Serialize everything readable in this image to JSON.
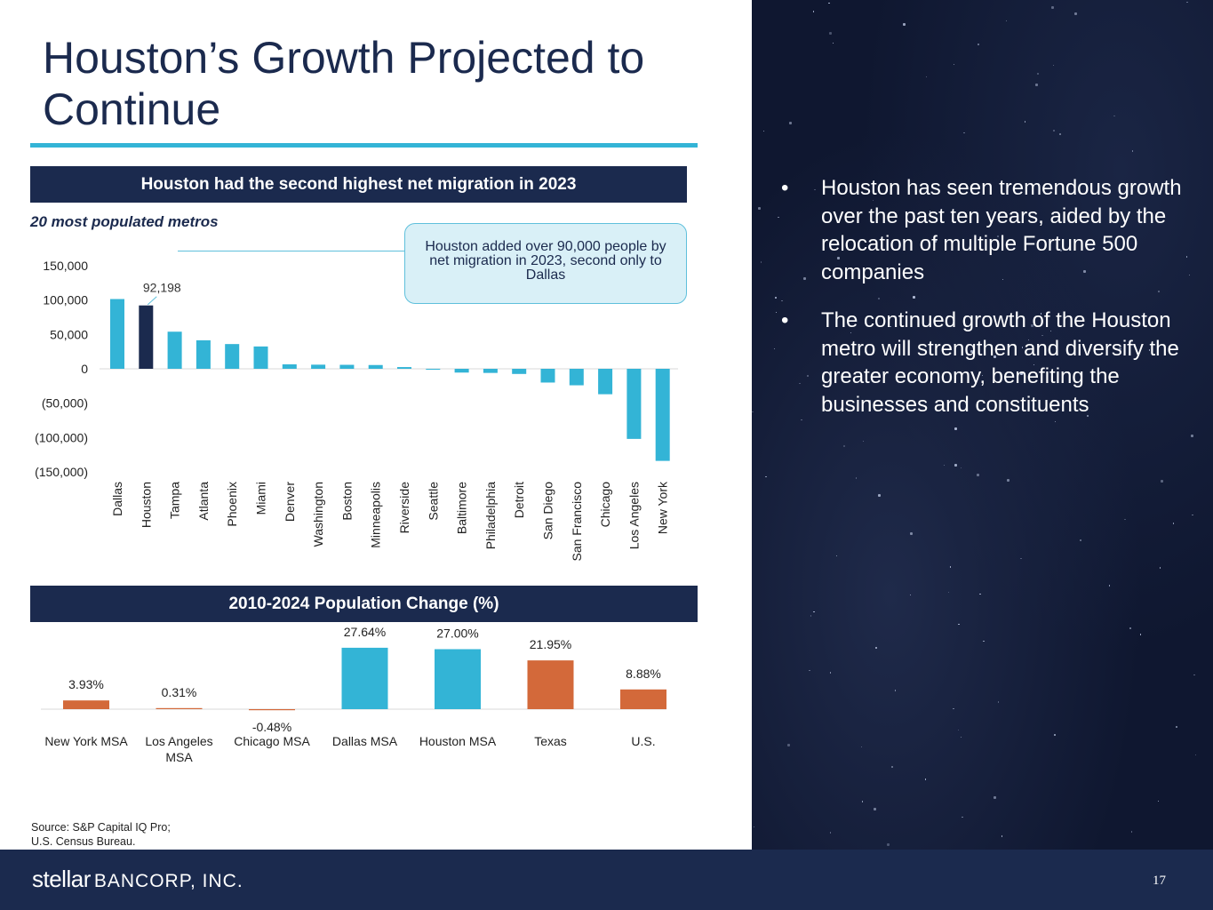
{
  "title": "Houston’s Growth Projected to\nContinue",
  "colors": {
    "navy": "#1b2a4e",
    "cyan": "#33b4d6",
    "orange": "#d3693a",
    "highlight": "#1b2a4e"
  },
  "chart_data": [
    {
      "type": "bar",
      "banner": "Houston had the second highest net migration in 2023",
      "subtitle": "20 most populated metros",
      "categories": [
        "Dallas",
        "Houston",
        "Tampa",
        "Atlanta",
        "Phoenix",
        "Miami",
        "Denver",
        "Washington",
        "Boston",
        "Minneapolis",
        "Riverside",
        "Seattle",
        "Baltimore",
        "Philadelphia",
        "Detroit",
        "San Diego",
        "San Francisco",
        "Chicago",
        "Los Angeles",
        "New York"
      ],
      "values": [
        101500,
        92198,
        54000,
        41500,
        36000,
        32500,
        6500,
        6000,
        5800,
        5500,
        2500,
        -1000,
        -5500,
        -6000,
        -7500,
        -20000,
        -24000,
        -37000,
        -102000,
        -134000
      ],
      "highlight_index": 1,
      "data_label": {
        "index": 1,
        "text": "92,198"
      },
      "ylim": [
        -150000,
        150000
      ],
      "yticks": [
        150000,
        100000,
        50000,
        0,
        -50000,
        -100000,
        -150000
      ],
      "ytick_labels": [
        "150,000",
        "100,000",
        "50,000",
        "0",
        "(50,000)",
        "(100,000)",
        "(150,000)"
      ],
      "callout": "Houston added over 90,000 people by net migration in 2023, second only to Dallas"
    },
    {
      "type": "bar",
      "banner": "2010-2024 Population Change (%)",
      "categories": [
        "New York MSA",
        "Los Angeles MSA",
        "Chicago MSA",
        "Dallas MSA",
        "Houston MSA",
        "Texas",
        "U.S."
      ],
      "values": [
        3.93,
        0.31,
        -0.48,
        27.64,
        27.0,
        21.95,
        8.88
      ],
      "value_labels": [
        "3.93%",
        "0.31%",
        "-0.48%",
        "27.64%",
        "27.00%",
        "21.95%",
        "8.88%"
      ],
      "series_colors": [
        "orange",
        "orange",
        "orange",
        "cyan",
        "cyan",
        "orange",
        "orange"
      ]
    }
  ],
  "bullets": [
    "Houston has seen tremendous growth over the past ten years, aided by the relocation of multiple Fortune 500 companies",
    "The continued growth of the Houston metro will strengthen and diversify the greater economy, benefiting the businesses and constituents"
  ],
  "bullet_symbol": "•",
  "source_note": [
    "Source: S&P Capital IQ Pro;",
    "U.S. Census Bureau."
  ],
  "footer": {
    "logo_word": "stellar",
    "logo_rest": "BANCORP, INC.",
    "page_number": "17"
  }
}
